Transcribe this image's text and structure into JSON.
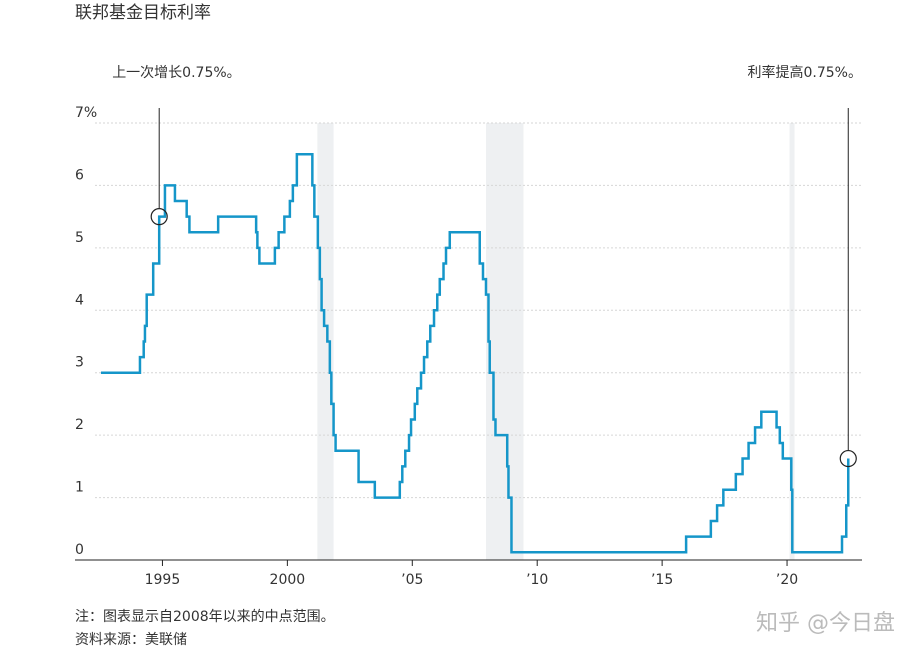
{
  "chart_data": {
    "type": "line",
    "title": "联邦基金目标利率",
    "x": [
      1992.54,
      1994.1,
      1994.25,
      1994.3,
      1994.37,
      1994.63,
      1994.87,
      1995.1,
      1995.5,
      1995.97,
      1996.08,
      1997.23,
      1998.75,
      1998.8,
      1998.88,
      1999.5,
      1999.65,
      1999.88,
      2000.1,
      2000.22,
      2000.38,
      2001.0,
      2001.08,
      2001.22,
      2001.3,
      2001.37,
      2001.47,
      2001.6,
      2001.7,
      2001.76,
      2001.85,
      2001.93,
      2002.85,
      2003.5,
      2004.5,
      2004.6,
      2004.72,
      2004.87,
      2004.95,
      2005.1,
      2005.2,
      2005.35,
      2005.47,
      2005.6,
      2005.72,
      2005.87,
      2006.0,
      2006.1,
      2006.25,
      2006.35,
      2006.5,
      2007.7,
      2007.83,
      2007.95,
      2008.05,
      2008.1,
      2008.25,
      2008.33,
      2008.8,
      2008.85,
      2008.97,
      2015.96,
      2016.95,
      2017.2,
      2017.45,
      2017.95,
      2018.22,
      2018.46,
      2018.72,
      2018.97,
      2019.58,
      2019.71,
      2019.83,
      2020.17,
      2020.21,
      2022.2,
      2022.37,
      2022.45
    ],
    "series": [
      {
        "name": "联邦基金目标利率",
        "color": "#1596c9",
        "values": [
          3.0,
          3.25,
          3.5,
          3.75,
          4.25,
          4.75,
          5.5,
          6.0,
          5.75,
          5.5,
          5.25,
          5.5,
          5.25,
          5.0,
          4.75,
          5.0,
          5.25,
          5.5,
          5.75,
          6.0,
          6.5,
          6.0,
          5.5,
          5.0,
          4.5,
          4.0,
          3.75,
          3.5,
          3.0,
          2.5,
          2.0,
          1.75,
          1.25,
          1.0,
          1.25,
          1.5,
          1.75,
          2.0,
          2.25,
          2.5,
          2.75,
          3.0,
          3.25,
          3.5,
          3.75,
          4.0,
          4.25,
          4.5,
          4.75,
          5.0,
          5.25,
          4.75,
          4.5,
          4.25,
          3.5,
          3.0,
          2.25,
          2.0,
          1.5,
          1.0,
          0.125,
          0.375,
          0.625,
          0.875,
          1.125,
          1.375,
          1.625,
          1.875,
          2.125,
          2.375,
          2.125,
          1.875,
          1.625,
          1.125,
          0.125,
          0.375,
          0.875,
          1.625
        ]
      }
    ],
    "xlim": [
      1991.5,
      2023
    ],
    "xticks": [
      1995,
      2000,
      {
        "value": 2005,
        "label": "’05"
      },
      {
        "value": 2010,
        "label": "’10"
      },
      {
        "value": 2015,
        "label": "’15"
      },
      {
        "value": 2020,
        "label": "’20"
      }
    ],
    "ylim": [
      0,
      7
    ],
    "yticks": [
      0,
      1,
      2,
      3,
      4,
      5,
      6,
      {
        "value": 7,
        "label": "7%"
      }
    ],
    "grid": true,
    "recessions": [
      [
        2001.2,
        2001.85
      ],
      [
        2007.95,
        2009.45
      ],
      [
        2020.1,
        2020.3
      ]
    ],
    "recession_color": "#eef0f2",
    "annotations": [
      {
        "text": "上一次增长0.75%。",
        "x": 1994.87,
        "y": 5.5
      },
      {
        "text": "利率提高0.75%。",
        "x": 2022.45,
        "y": 1.625
      }
    ],
    "notes": [
      "注：图表显示自2008年以来的中点范围。",
      "资料来源：美联储"
    ],
    "watermark": "知乎 @今日盘"
  }
}
